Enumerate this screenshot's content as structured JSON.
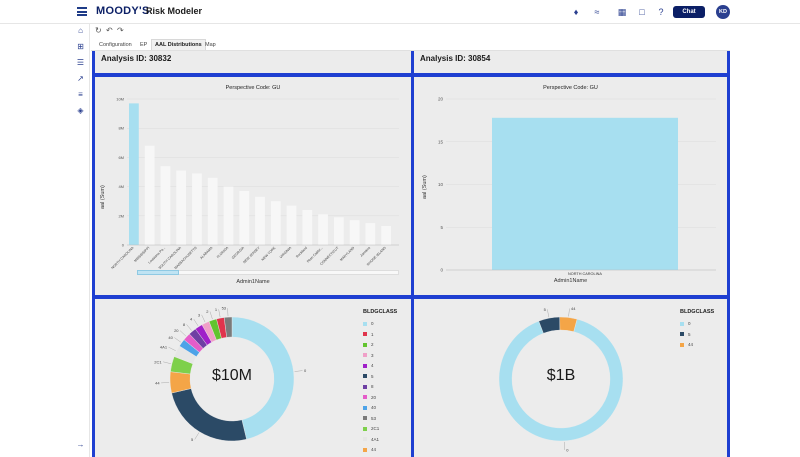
{
  "app": {
    "brand": "MOODY'S",
    "product": "Risk Modeler",
    "chat_label": "Chat",
    "avatar_initials": "KD",
    "accent": "#1e3fd1",
    "brand_color": "#0b1f66"
  },
  "tabs": [
    {
      "label": "Configuration",
      "active": false
    },
    {
      "label": "EP",
      "active": false
    },
    {
      "label": "AAL Distributions",
      "active": true
    },
    {
      "label": "Map",
      "active": false
    }
  ],
  "panels": {
    "top_left": {
      "title": "Analysis ID: 30832"
    },
    "top_right": {
      "title": "Analysis ID: 30854"
    },
    "mid_left": {
      "subtitle": "Perspective Code: GU",
      "xlabel": "Admin1Name",
      "ylabel": "aal (Sum)"
    },
    "mid_right": {
      "subtitle": "Perspective Code: GU",
      "xlabel": "Admin1Name",
      "ylabel": "aal (Sum)"
    },
    "bottom_left": {
      "center": "$10M",
      "legend_title": "BLDGCLASS"
    },
    "bottom_right": {
      "center": "$1B",
      "legend_title": "BLDGCLASS"
    }
  },
  "chart_data": [
    {
      "type": "bar",
      "subtitle": "Perspective Code: GU",
      "xlabel": "Admin1Name",
      "ylabel": "aal (Sum)",
      "ylim": [
        0,
        10000000
      ],
      "yticks": [
        "0",
        "2M",
        "4M",
        "6M",
        "8M",
        "10M"
      ],
      "categories": [
        "NORTH CAROLINA",
        "MISSISSIPPI",
        "Louisiana Pa...",
        "SOUTH CAROLINA",
        "MASSACHUSETTS",
        "ALABAMA",
        "FLORIDA",
        "GEORGIA",
        "NEW JERSEY",
        "NEW YORK",
        "VIRGINIA",
        "Rockland",
        "Plum Califor...",
        "CONNECTICUT",
        "MARYLAND",
        "Jamaica",
        "RHODE ISLAND"
      ],
      "values": [
        9700000,
        6800000,
        5400000,
        5100000,
        4900000,
        4600000,
        4000000,
        3700000,
        3300000,
        3000000,
        2700000,
        2400000,
        2100000,
        1900000,
        1700000,
        1500000,
        1300000
      ],
      "highlight_index": 0,
      "colors": {
        "highlight": "#a7dff0",
        "faded": "#f7f7f7"
      }
    },
    {
      "type": "bar",
      "subtitle": "Perspective Code: GU",
      "xlabel": "Admin1Name",
      "ylabel": "aal (Sum)",
      "ylim": [
        0,
        2000000000
      ],
      "yticks": [
        "0",
        "5",
        "10",
        "15",
        "20"
      ],
      "categories": [
        "NORTH CAROLINA"
      ],
      "values": [
        1780000000
      ],
      "colors": {
        "bar": "#a7dff0"
      }
    },
    {
      "type": "pie",
      "center_label": "$10M",
      "legend_title": "BLDGCLASS",
      "legend": [
        "0",
        "1",
        "2",
        "3",
        "4",
        "5",
        "8",
        "20",
        "40",
        "53",
        "2C1",
        "4A1",
        "44"
      ],
      "slices": [
        {
          "label": "0",
          "value": 0.46,
          "color": "#a7dff0"
        },
        {
          "label": "5",
          "value": 0.25,
          "color": "#2b4a66"
        },
        {
          "label": "44",
          "value": 0.055,
          "color": "#f4a547"
        },
        {
          "label": "2C1",
          "value": 0.04,
          "color": "#7ed04b"
        },
        {
          "label": "4A1",
          "value": 0.03,
          "color": "#e6e6e6"
        },
        {
          "label": "40",
          "value": 0.02,
          "color": "#4da3e8"
        },
        {
          "label": "20",
          "value": 0.02,
          "color": "#e55cc9"
        },
        {
          "label": "8",
          "value": 0.02,
          "color": "#6e3fa3"
        },
        {
          "label": "4",
          "value": 0.02,
          "color": "#a020c9"
        },
        {
          "label": "3",
          "value": 0.02,
          "color": "#f0a0c8"
        },
        {
          "label": "2",
          "value": 0.02,
          "color": "#62c42f"
        },
        {
          "label": "1",
          "value": 0.02,
          "color": "#e0344c"
        },
        {
          "label": "53",
          "value": 0.02,
          "color": "#7a7a7a"
        },
        {
          "label": "52",
          "value": 0.0,
          "color": "#bbbbbb"
        }
      ],
      "outer_labels": [
        "0",
        "5",
        "44",
        "2C1",
        "4A1",
        "40",
        "20",
        "8",
        "53",
        "52"
      ]
    },
    {
      "type": "pie",
      "center_label": "$1B",
      "legend_title": "BLDGCLASS",
      "legend": [
        "0",
        "5",
        "44"
      ],
      "slices": [
        {
          "label": "0",
          "value": 0.9,
          "color": "#a7dff0"
        },
        {
          "label": "5",
          "value": 0.055,
          "color": "#2b4a66"
        },
        {
          "label": "44",
          "value": 0.045,
          "color": "#f4a547"
        }
      ],
      "outer_labels": [
        "0",
        "5",
        "44"
      ]
    }
  ]
}
